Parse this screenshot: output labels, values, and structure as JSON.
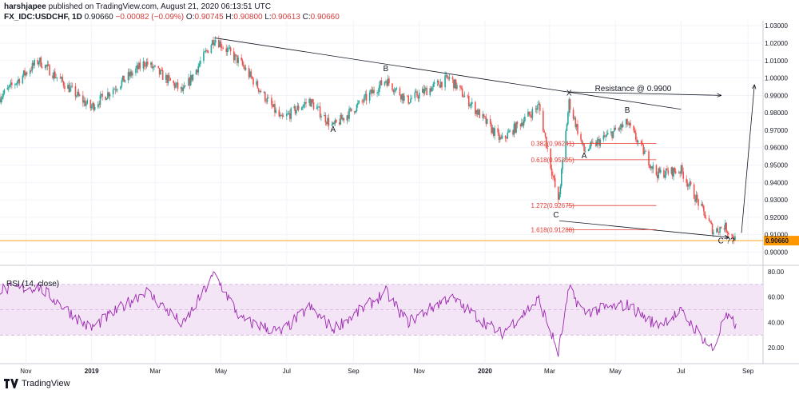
{
  "header": {
    "publisher": "harshjapee",
    "published_text": " published on TradingView.com, August 21, 2020 06:13:51 UTC",
    "symbol_label": "FX_IDC:USDCHF, 1D",
    "last": "0.90660",
    "change": "−0.00082 (−0.09%)",
    "o_label": "O:",
    "o_value": "0.90745",
    "h_label": "H:",
    "h_value": "0.90800",
    "l_label": "L:",
    "l_value": "0.90613",
    "c_label": "C:",
    "c_value": "0.90660"
  },
  "footer": {
    "brand": "TradingView"
  },
  "colors": {
    "up": "#26a69a",
    "down": "#ef5350",
    "rsi": "#9c27b0",
    "rsi_band": "#f3e5f5",
    "price_line": "#ff9800",
    "fib": "#e53935"
  },
  "chart_data": [
    {
      "type": "candlestick",
      "title": "FX_IDC:USDCHF, 1D",
      "ylim": [
        0.897,
        1.031
      ],
      "y_ticks": [
        "0.90000",
        "0.91000",
        "0.92000",
        "0.93000",
        "0.94000",
        "0.95000",
        "0.96000",
        "0.97000",
        "0.98000",
        "0.99000",
        "1.00000",
        "1.01000",
        "1.02000",
        "1.03000"
      ],
      "current_price": "0.90660",
      "x_ticks": [
        "Nov",
        "2019",
        "Mar",
        "May",
        "Jul",
        "Sep",
        "Nov",
        "2020",
        "Mar",
        "May",
        "Jul",
        "Sep"
      ],
      "x_range": [
        "2018-10-08",
        "2020-09-15"
      ],
      "ohlc_anchors": [
        {
          "date": "2018-10-08",
          "close": 0.989
        },
        {
          "date": "2018-11-13",
          "close": 1.01
        },
        {
          "date": "2018-12-31",
          "close": 0.983
        },
        {
          "date": "2019-02-20",
          "close": 1.009
        },
        {
          "date": "2019-03-27",
          "close": 0.992
        },
        {
          "date": "2019-04-25",
          "close": 1.023
        },
        {
          "date": "2019-05-20",
          "close": 1.008
        },
        {
          "date": "2019-06-26",
          "close": 0.976
        },
        {
          "date": "2019-07-22",
          "close": 0.987
        },
        {
          "date": "2019-08-13",
          "close": 0.972
        },
        {
          "date": "2019-09-12",
          "close": 0.988
        },
        {
          "date": "2019-10-01",
          "close": 0.999
        },
        {
          "date": "2019-10-21",
          "close": 0.987
        },
        {
          "date": "2019-11-29",
          "close": 1.0
        },
        {
          "date": "2020-01-16",
          "close": 0.964
        },
        {
          "date": "2020-02-20",
          "close": 0.984
        },
        {
          "date": "2020-03-09",
          "close": 0.928
        },
        {
          "date": "2020-03-19",
          "close": 0.986
        },
        {
          "date": "2020-04-02",
          "close": 0.958
        },
        {
          "date": "2020-05-12",
          "close": 0.974
        },
        {
          "date": "2020-06-08",
          "close": 0.945
        },
        {
          "date": "2020-07-01",
          "close": 0.947
        },
        {
          "date": "2020-07-31",
          "close": 0.912
        },
        {
          "date": "2020-08-10",
          "close": 0.915
        },
        {
          "date": "2020-08-21",
          "close": 0.9066
        }
      ],
      "annotations": {
        "wave_labels": [
          {
            "text": "A",
            "date": "2019-08-13",
            "price": 0.969
          },
          {
            "text": "B",
            "date": "2019-10-01",
            "price": 1.004
          },
          {
            "text": "X",
            "date": "2020-03-19",
            "price": 0.99
          },
          {
            "text": "A",
            "date": "2020-04-02",
            "price": 0.954
          },
          {
            "text": "B",
            "date": "2020-05-12",
            "price": 0.98
          },
          {
            "text": "C",
            "date": "2020-03-07",
            "price": 0.92
          },
          {
            "text": "C ??",
            "date": "2020-08-12",
            "price": 0.905
          }
        ],
        "resistance_label": "Resistance @ 0.9900",
        "fib_levels": [
          {
            "label": "0.382(0.96241)",
            "price": 0.96241
          },
          {
            "label": "0.618(0.95305)",
            "price": 0.95305
          },
          {
            "label": "1.272(0.92675)",
            "price": 0.92675
          },
          {
            "label": "1.618(0.91288)",
            "price": 0.91288
          }
        ],
        "trendlines": [
          {
            "from": {
              "date": "2019-04-25",
              "price": 1.023
            },
            "to": {
              "date": "2020-07-01",
              "price": 0.982
            }
          },
          {
            "from": {
              "date": "2020-03-10",
              "price": 0.918
            },
            "to": {
              "date": "2020-08-14",
              "price": 0.9085
            }
          },
          {
            "from": {
              "date": "2020-03-19",
              "price": 0.992
            },
            "to": {
              "date": "2020-08-07",
              "price": 0.99
            }
          },
          {
            "from": {
              "date": "2020-08-26",
              "price": 0.911
            },
            "to": {
              "date": "2020-09-07",
              "price": 0.996
            }
          }
        ]
      }
    },
    {
      "type": "line",
      "title": "RSI (14, close)",
      "ylim": [
        10,
        80
      ],
      "y_ticks": [
        "80.00",
        "60.00",
        "40.00",
        "20.00"
      ],
      "band": [
        30,
        70
      ],
      "anchors": [
        {
          "date": "2018-10-08",
          "value": 66
        },
        {
          "date": "2018-11-13",
          "value": 68
        },
        {
          "date": "2018-12-31",
          "value": 35
        },
        {
          "date": "2019-02-20",
          "value": 65
        },
        {
          "date": "2019-03-27",
          "value": 38
        },
        {
          "date": "2019-04-25",
          "value": 78
        },
        {
          "date": "2019-05-20",
          "value": 42
        },
        {
          "date": "2019-06-26",
          "value": 32
        },
        {
          "date": "2019-07-22",
          "value": 52
        },
        {
          "date": "2019-08-13",
          "value": 35
        },
        {
          "date": "2019-09-12",
          "value": 52
        },
        {
          "date": "2019-10-01",
          "value": 64
        },
        {
          "date": "2019-10-21",
          "value": 40
        },
        {
          "date": "2019-11-29",
          "value": 60
        },
        {
          "date": "2020-01-16",
          "value": 31
        },
        {
          "date": "2020-02-20",
          "value": 58
        },
        {
          "date": "2020-03-09",
          "value": 16
        },
        {
          "date": "2020-03-19",
          "value": 66
        },
        {
          "date": "2020-04-02",
          "value": 48
        },
        {
          "date": "2020-05-12",
          "value": 54
        },
        {
          "date": "2020-06-08",
          "value": 38
        },
        {
          "date": "2020-07-01",
          "value": 48
        },
        {
          "date": "2020-07-31",
          "value": 18
        },
        {
          "date": "2020-08-10",
          "value": 44
        },
        {
          "date": "2020-08-21",
          "value": 39
        }
      ]
    }
  ]
}
